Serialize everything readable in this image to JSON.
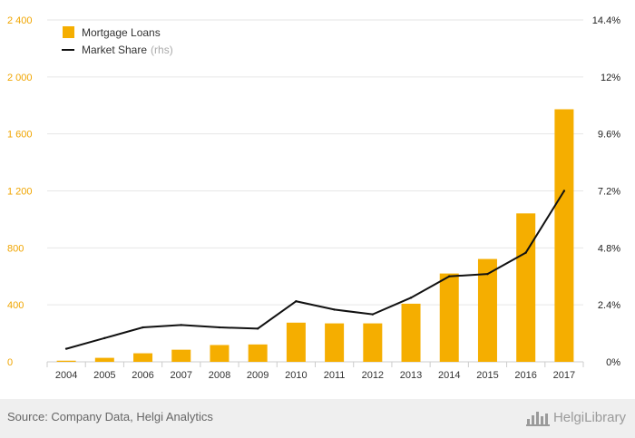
{
  "chart_data": {
    "type": "bar",
    "categories": [
      "2004",
      "2005",
      "2006",
      "2007",
      "2008",
      "2009",
      "2010",
      "2011",
      "2012",
      "2013",
      "2014",
      "2015",
      "2016",
      "2017"
    ],
    "series": [
      {
        "name": "Mortgage Loans",
        "type": "bar",
        "axis": "left",
        "values": [
          8,
          28,
          60,
          85,
          118,
          122,
          275,
          270,
          270,
          408,
          620,
          722,
          1042,
          1773
        ]
      },
      {
        "name": "Market Share",
        "name_suffix": "(rhs)",
        "type": "line",
        "axis": "right",
        "values": [
          0.55,
          1.0,
          1.45,
          1.55,
          1.45,
          1.4,
          2.55,
          2.2,
          2.0,
          2.7,
          3.6,
          3.7,
          4.6,
          7.2
        ]
      }
    ],
    "ylim": [
      0,
      2400
    ],
    "y_ticks": [
      "0",
      "400",
      "800",
      "1 200",
      "1 600",
      "2 000",
      "2 400"
    ],
    "y2lim": [
      0,
      14.4
    ],
    "y2_ticks": [
      "0%",
      "2.4%",
      "4.8%",
      "7.2%",
      "9.6%",
      "12%",
      "14.4%"
    ],
    "grid": true,
    "legend_position": "top-left",
    "colors": {
      "bar": "#f5ae00",
      "line": "#111111",
      "left_tick": "#f0a500",
      "right_tick": "#222222"
    }
  },
  "footer": {
    "source": "Source: Company Data, Helgi Analytics",
    "brand": "HelgiLibrary",
    "brand_icon": "helgi-library-logo"
  }
}
